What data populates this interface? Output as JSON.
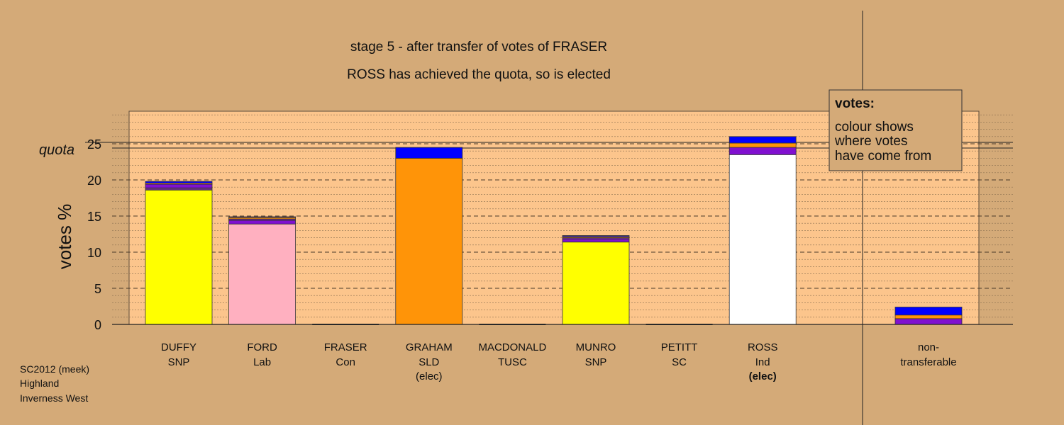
{
  "chart_data": {
    "type": "bar",
    "stacked": true,
    "title": "stage 5 - after transfer of votes of FRASER",
    "subtitle": "ROSS has achieved the quota, so is elected",
    "ylabel": "votes %",
    "ylim": [
      0,
      29
    ],
    "yticks": [
      "0",
      "5",
      "10",
      "15",
      "20",
      "25"
    ],
    "quota_label": "quota",
    "quota_value": 24.8,
    "grid": true,
    "colors": {
      "SNP": "#ffff00",
      "Lab": "#ffb0c0",
      "SLD": "#ff9408",
      "Ind": "#ffffff",
      "Con": "#0000ff",
      "TUSC": "#8010d0",
      "SC": "#6b2d8c"
    },
    "categories": [
      {
        "name": "DUFFY",
        "party": "SNP",
        "note": "",
        "segments": [
          {
            "source": "SNP",
            "value": 18.6
          },
          {
            "source": "SC",
            "value": 0.3
          },
          {
            "source": "TUSC",
            "value": 0.5
          },
          {
            "source": "SLD",
            "value": 0.15
          },
          {
            "source": "Con",
            "value": 0.25
          }
        ]
      },
      {
        "name": "FORD",
        "party": "Lab",
        "note": "",
        "segments": [
          {
            "source": "Lab",
            "value": 13.9
          },
          {
            "source": "TUSC",
            "value": 0.5
          },
          {
            "source": "SC",
            "value": 0.2
          },
          {
            "source": "SLD",
            "value": 0.2
          },
          {
            "source": "Con",
            "value": 0.1
          }
        ]
      },
      {
        "name": "FRASER",
        "party": "Con",
        "note": "",
        "segments": []
      },
      {
        "name": "GRAHAM",
        "party": "SLD",
        "note": "(elec)",
        "segments": [
          {
            "source": "SLD",
            "value": 23.0
          },
          {
            "source": "Con",
            "value": 1.5
          }
        ]
      },
      {
        "name": "MACDONALD",
        "party": "TUSC",
        "note": "",
        "segments": []
      },
      {
        "name": "MUNRO",
        "party": "SNP",
        "note": "",
        "segments": [
          {
            "source": "SNP",
            "value": 11.4
          },
          {
            "source": "TUSC",
            "value": 0.4
          },
          {
            "source": "SC",
            "value": 0.2
          },
          {
            "source": "SLD",
            "value": 0.15
          },
          {
            "source": "Con",
            "value": 0.15
          }
        ]
      },
      {
        "name": "PETITT",
        "party": "SC",
        "note": "",
        "segments": []
      },
      {
        "name": "ROSS",
        "party": "Ind",
        "note": "(elec)",
        "segments": [
          {
            "source": "Ind",
            "value": 23.5
          },
          {
            "source": "TUSC",
            "value": 1.0
          },
          {
            "source": "SLD",
            "value": 0.6
          },
          {
            "source": "Con",
            "value": 0.9
          }
        ]
      }
    ],
    "nontransferable": {
      "label_line1": "non-",
      "label_line2": "transferable",
      "segments": [
        {
          "source": "TUSC",
          "value": 0.8
        },
        {
          "source": "SLD",
          "value": 0.5
        },
        {
          "source": "Con",
          "value": 1.1
        }
      ]
    },
    "legend": {
      "heading": "votes:",
      "lines": [
        "colour shows",
        "where votes",
        "have come from"
      ]
    },
    "footnote": [
      "SC2012 (meek)",
      "Highland",
      "Inverness West"
    ]
  }
}
